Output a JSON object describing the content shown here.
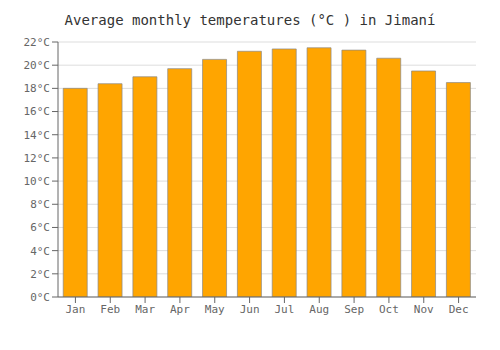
{
  "chart_data": {
    "type": "bar",
    "title": "Average monthly temperatures (°C ) in Jimaní",
    "categories": [
      "Jan",
      "Feb",
      "Mar",
      "Apr",
      "May",
      "Jun",
      "Jul",
      "Aug",
      "Sep",
      "Oct",
      "Nov",
      "Dec"
    ],
    "values": [
      18.0,
      18.4,
      19.0,
      19.7,
      20.5,
      21.2,
      21.4,
      21.5,
      21.3,
      20.6,
      19.5,
      18.5
    ],
    "color": "#FFA500",
    "ylim": [
      0,
      22
    ],
    "yticks": [
      {
        "value": 0,
        "label": "0°C"
      },
      {
        "value": 2,
        "label": "2°C"
      },
      {
        "value": 4,
        "label": "4°C"
      },
      {
        "value": 6,
        "label": "6°C"
      },
      {
        "value": 8,
        "label": "8°C"
      },
      {
        "value": 10,
        "label": "10°C"
      },
      {
        "value": 12,
        "label": "12°C"
      },
      {
        "value": 14,
        "label": "14°C"
      },
      {
        "value": 16,
        "label": "16°C"
      },
      {
        "value": 18,
        "label": "18°C"
      },
      {
        "value": 20,
        "label": "20°C"
      },
      {
        "value": 22,
        "label": "22°C"
      }
    ],
    "grid": true
  }
}
